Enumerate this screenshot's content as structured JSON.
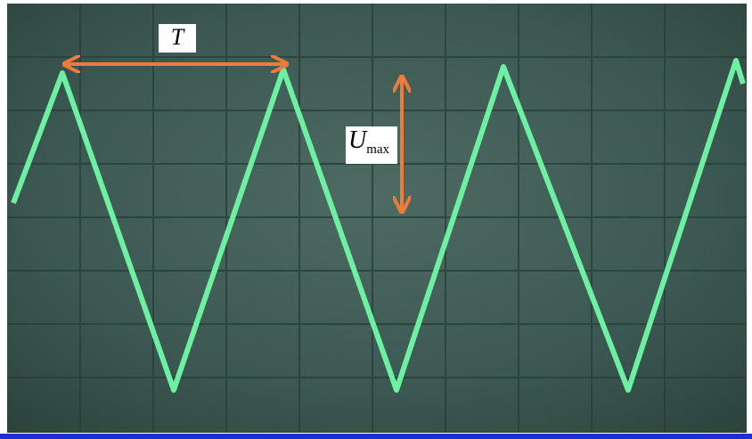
{
  "period_label": "T",
  "amplitude_label": {
    "symbol": "U",
    "subscript": "max"
  }
}
